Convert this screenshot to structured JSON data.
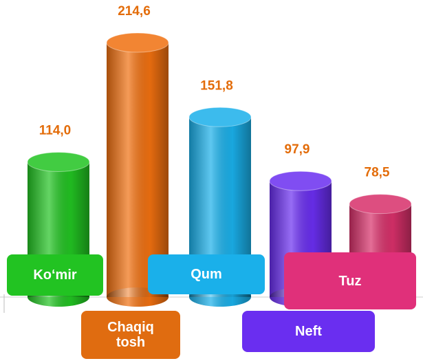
{
  "chart_data": {
    "type": "bar",
    "categories": [
      "Ko‘mir",
      "Chaqiq tosh",
      "Qum",
      "Neft",
      "Tuz"
    ],
    "values": [
      114.0,
      214.6,
      151.8,
      97.9,
      78.5
    ],
    "value_labels": [
      "114,0",
      "214,6",
      "151,8",
      "97,9",
      "78,5"
    ],
    "colors": [
      "#22c322",
      "#f07010",
      "#1ab0ea",
      "#6a2ef0",
      "#d8306a"
    ],
    "label_colors": [
      "#22c322",
      "#e06c10",
      "#1ab0ea",
      "#6a2ef0",
      "#e0307a"
    ]
  }
}
